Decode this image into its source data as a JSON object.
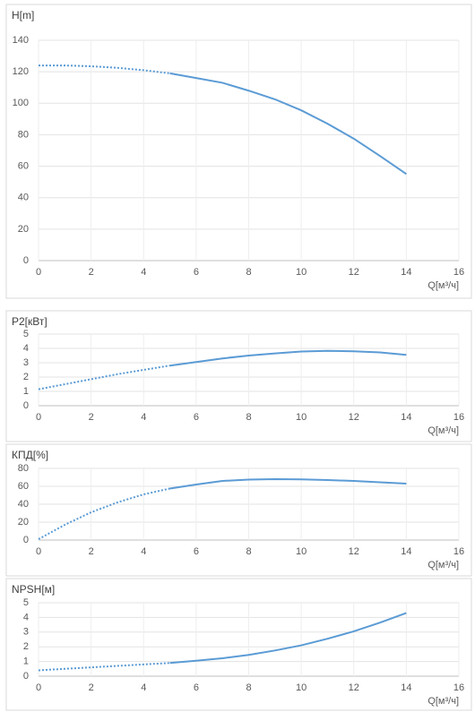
{
  "chart_data": [
    {
      "type": "line",
      "title": "H[m]",
      "x_label": "Q[м³/ч]",
      "x": [
        0,
        1,
        2,
        3,
        4,
        5,
        6,
        7,
        8,
        9,
        10,
        11,
        12,
        13,
        14
      ],
      "series": [
        {
          "color": "#5b9bd5",
          "dash": "dotted",
          "values": [
            124,
            124,
            123.5,
            122.5,
            121,
            119,
            null,
            null,
            null,
            null,
            null,
            null,
            null,
            null,
            null
          ]
        },
        {
          "color": "#5b9bd5",
          "dash": "solid",
          "values": [
            null,
            null,
            null,
            null,
            null,
            119,
            116,
            113,
            108,
            102.5,
            95.5,
            87,
            77.5,
            66.5,
            55
          ]
        }
      ],
      "xlim": [
        0,
        16
      ],
      "xticks": [
        0,
        2,
        4,
        6,
        8,
        10,
        12,
        14,
        16
      ],
      "ylim": [
        0,
        140
      ],
      "yticks": [
        0,
        20,
        40,
        60,
        80,
        100,
        120,
        140
      ],
      "grid": true
    },
    {
      "type": "line",
      "title": "P2[кВт]",
      "x_label": "Q[м³/ч]",
      "x": [
        0,
        1,
        2,
        3,
        4,
        5,
        6,
        7,
        8,
        9,
        10,
        11,
        12,
        13,
        14
      ],
      "series": [
        {
          "color": "#5b9bd5",
          "dash": "dotted",
          "values": [
            1.15,
            1.5,
            1.85,
            2.2,
            2.5,
            2.8,
            null,
            null,
            null,
            null,
            null,
            null,
            null,
            null,
            null
          ]
        },
        {
          "color": "#5b9bd5",
          "dash": "solid",
          "values": [
            null,
            null,
            null,
            null,
            null,
            2.8,
            3.05,
            3.3,
            3.5,
            3.65,
            3.78,
            3.83,
            3.8,
            3.72,
            3.55
          ]
        }
      ],
      "xlim": [
        0,
        16
      ],
      "xticks": [
        0,
        2,
        4,
        6,
        8,
        10,
        12,
        14,
        16
      ],
      "ylim": [
        0,
        5
      ],
      "yticks": [
        0,
        1,
        2,
        3,
        4,
        5
      ],
      "grid": true
    },
    {
      "type": "line",
      "title": "КПД[%]",
      "x_label": "Q[м³/ч]",
      "x": [
        0,
        1,
        2,
        3,
        4,
        5,
        6,
        7,
        8,
        9,
        10,
        11,
        12,
        13,
        14
      ],
      "series": [
        {
          "color": "#5b9bd5",
          "dash": "dotted",
          "values": [
            1,
            17,
            31,
            42,
            51,
            57.5,
            null,
            null,
            null,
            null,
            null,
            null,
            null,
            null,
            null
          ]
        },
        {
          "color": "#5b9bd5",
          "dash": "solid",
          "values": [
            null,
            null,
            null,
            null,
            null,
            57.5,
            62,
            66,
            67.5,
            68,
            67.8,
            67,
            66,
            64.5,
            63
          ]
        }
      ],
      "xlim": [
        0,
        16
      ],
      "xticks": [
        0,
        2,
        4,
        6,
        8,
        10,
        12,
        14,
        16
      ],
      "ylim": [
        0,
        80
      ],
      "yticks": [
        0,
        20,
        40,
        60,
        80
      ],
      "grid": true
    },
    {
      "type": "line",
      "title": "NPSH[м]",
      "x_label": "Q[м³/ч]",
      "x": [
        0,
        1,
        2,
        3,
        4,
        5,
        6,
        7,
        8,
        9,
        10,
        11,
        12,
        13,
        14
      ],
      "series": [
        {
          "color": "#5b9bd5",
          "dash": "dotted",
          "values": [
            0.4,
            0.5,
            0.6,
            0.7,
            0.8,
            0.9,
            null,
            null,
            null,
            null,
            null,
            null,
            null,
            null,
            null
          ]
        },
        {
          "color": "#5b9bd5",
          "dash": "solid",
          "values": [
            null,
            null,
            null,
            null,
            null,
            0.9,
            1.05,
            1.22,
            1.45,
            1.75,
            2.1,
            2.55,
            3.05,
            3.65,
            4.3
          ]
        }
      ],
      "xlim": [
        0,
        16
      ],
      "xticks": [
        0,
        2,
        4,
        6,
        8,
        10,
        12,
        14,
        16
      ],
      "ylim": [
        0,
        5
      ],
      "yticks": [
        0,
        1,
        2,
        3,
        4,
        5
      ],
      "grid": true
    }
  ]
}
